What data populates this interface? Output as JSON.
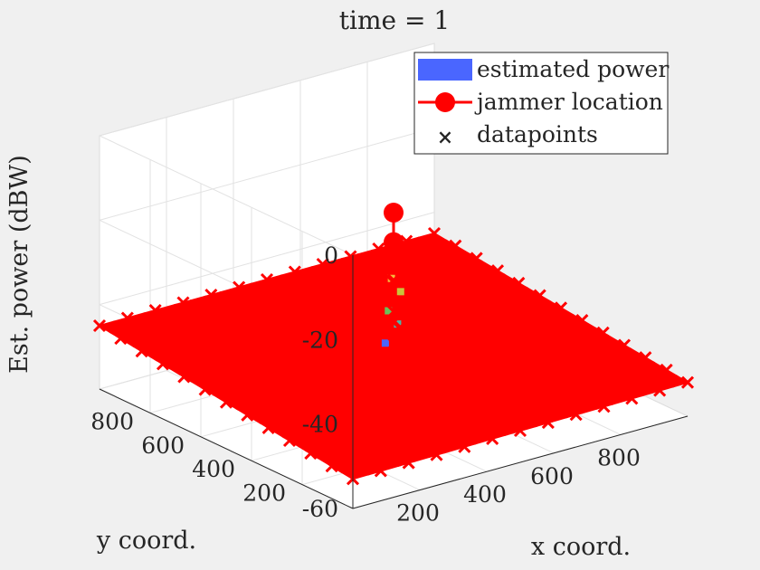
{
  "chart_data": {
    "type": "surface-3d",
    "title": "time = 1",
    "xlabel": "x coord.",
    "ylabel": "y coord.",
    "zlabel": "Est. power (dBW)",
    "xlim": [
      0,
      1000
    ],
    "ylim": [
      0,
      1000
    ],
    "zlim": [
      -60,
      0
    ],
    "x_ticks": [
      200,
      400,
      600,
      800
    ],
    "y_ticks": [
      200,
      400,
      600,
      800
    ],
    "z_ticks": [
      0,
      -20,
      -40,
      -60
    ],
    "grid": true,
    "legend_position": "top-right",
    "surface_corner_power": [
      {
        "x": 0,
        "y": 0,
        "z": -53
      },
      {
        "x": 1000,
        "y": 0,
        "z": -52
      },
      {
        "x": 1000,
        "y": 1000,
        "z": -45
      },
      {
        "x": 0,
        "y": 1000,
        "z": -45
      }
    ],
    "peak_region": {
      "x": 500,
      "y": 500,
      "z": -30
    },
    "jammer_location": [
      {
        "x": 500,
        "y": 500,
        "z": -15
      },
      {
        "x": 500,
        "y": 500,
        "z": -22
      }
    ],
    "series": [
      {
        "name": "estimated power",
        "color": "#4a66ff"
      },
      {
        "name": "jammer location",
        "color": "#ff0000"
      },
      {
        "name": "datapoints",
        "color": "#ff0000"
      }
    ]
  }
}
